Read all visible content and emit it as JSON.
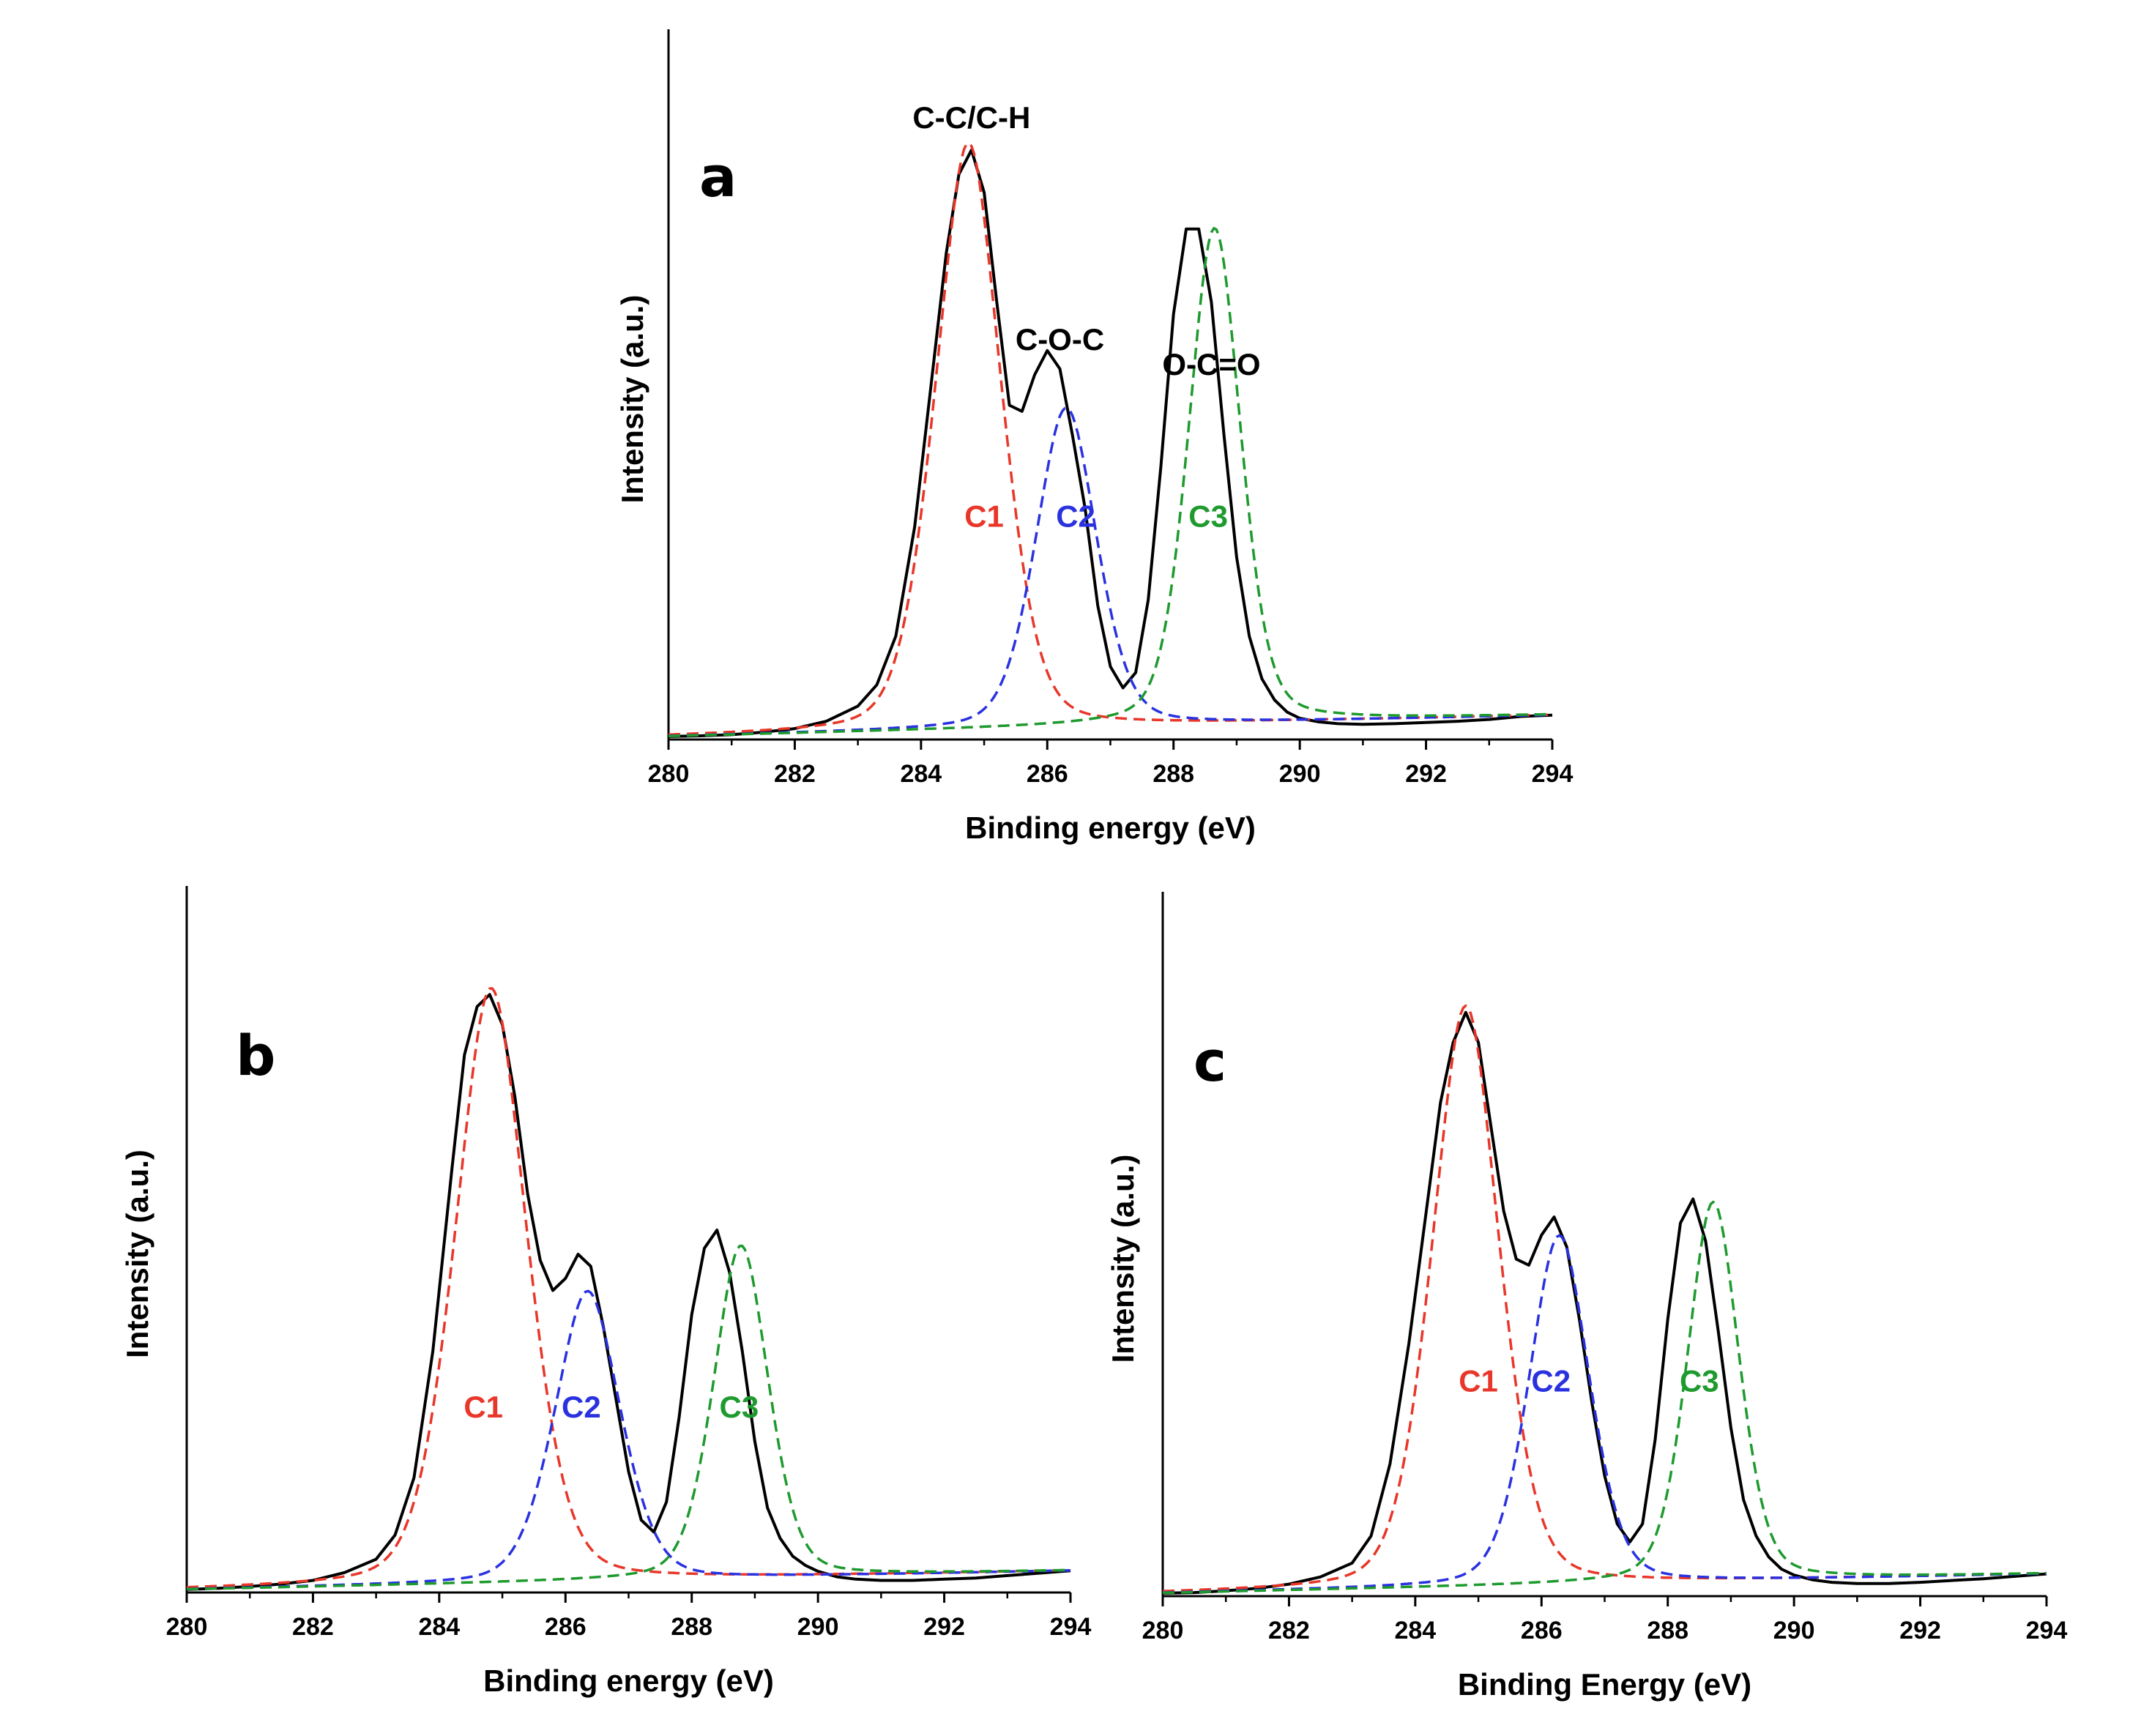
{
  "chart_data": [
    {
      "type": "line",
      "panel_label": "a",
      "xlabel": "Binding energy (eV)",
      "ylabel": "Intensity (a.u.)",
      "xlim": [
        280,
        294
      ],
      "xticks": [
        280,
        282,
        284,
        286,
        288,
        290,
        292,
        294
      ],
      "ylim": [
        0,
        100
      ],
      "peak_annotations": [
        {
          "text": "C-C/C-H",
          "x": 284.8
        },
        {
          "text": "C-O-C",
          "x": 286.2
        },
        {
          "text": "O-C=O",
          "x": 288.6
        }
      ],
      "series": [
        {
          "name": "Measured",
          "color": "#000000",
          "style": "solid",
          "x": [
            280,
            280.5,
            281,
            281.5,
            282,
            282.5,
            283,
            283.3,
            283.6,
            283.9,
            284.2,
            284.4,
            284.6,
            284.8,
            285,
            285.2,
            285.4,
            285.6,
            285.8,
            286,
            286.2,
            286.4,
            286.6,
            286.8,
            287,
            287.2,
            287.4,
            287.6,
            287.8,
            288,
            288.2,
            288.4,
            288.6,
            288.8,
            289,
            289.2,
            289.4,
            289.6,
            289.8,
            290,
            290.3,
            290.6,
            291,
            291.5,
            292,
            292.5,
            293,
            293.5,
            294
          ],
          "y": [
            0.5,
            0.6,
            0.8,
            1.2,
            1.8,
            3,
            5.5,
            9,
            17,
            35,
            62,
            80,
            93,
            97,
            90,
            72,
            55,
            54,
            60,
            64,
            61,
            50,
            38,
            22,
            12,
            8.5,
            11,
            23,
            45,
            70,
            84,
            84,
            72,
            50,
            30,
            17,
            10,
            6.5,
            4.5,
            3.5,
            2.9,
            2.6,
            2.5,
            2.6,
            2.8,
            3,
            3.3,
            3.8,
            4
          ]
        },
        {
          "name": "C1",
          "color": "#e8372a",
          "style": "dashed",
          "center": 284.75,
          "amplitude": 96.5,
          "sigma": 0.55,
          "gamma": 0.5,
          "eta": 0.3
        },
        {
          "name": "C2",
          "color": "#2a32e0",
          "style": "dashed",
          "center": 286.3,
          "amplitude": 52.5,
          "sigma": 0.5,
          "gamma": 0.5,
          "eta": 0.3
        },
        {
          "name": "C3",
          "color": "#1e9a2e",
          "style": "dashed",
          "center": 288.65,
          "amplitude": 81.5,
          "sigma": 0.42,
          "gamma": 0.45,
          "eta": 0.3
        },
        {
          "name": "Background",
          "style": "baseline",
          "from": [
            280,
            0.5
          ],
          "to": [
            294,
            4
          ]
        }
      ],
      "component_labels": [
        {
          "text": "C1",
          "x": 285.0,
          "y": 35,
          "color": "#e8372a"
        },
        {
          "text": "C2",
          "x": 286.45,
          "y": 35,
          "color": "#2a32e0"
        },
        {
          "text": "C3",
          "x": 288.55,
          "y": 35,
          "color": "#1e9a2e"
        }
      ]
    },
    {
      "type": "line",
      "panel_label": "b",
      "xlabel": "Binding energy (eV)",
      "ylabel": "Intensity (a.u.)",
      "xlim": [
        280,
        294
      ],
      "xticks": [
        280,
        282,
        284,
        286,
        288,
        290,
        292,
        294
      ],
      "ylim": [
        0,
        100
      ],
      "peak_annotations": [],
      "series": [
        {
          "name": "Measured",
          "color": "#000000",
          "style": "solid",
          "x": [
            280,
            280.5,
            281,
            281.5,
            282,
            282.5,
            283,
            283.3,
            283.6,
            283.9,
            284.2,
            284.4,
            284.6,
            284.8,
            285,
            285.2,
            285.4,
            285.6,
            285.8,
            286,
            286.2,
            286.4,
            286.6,
            286.8,
            287,
            287.2,
            287.4,
            287.6,
            287.8,
            288,
            288.2,
            288.4,
            288.6,
            288.8,
            289,
            289.2,
            289.4,
            289.6,
            289.8,
            290,
            290.3,
            290.6,
            291,
            291.5,
            292,
            292.5,
            293,
            293.5,
            294
          ],
          "y": [
            0.5,
            0.7,
            1,
            1.4,
            2,
            3.3,
            5.5,
            9.5,
            19,
            40,
            70,
            89,
            97,
            99,
            94,
            82,
            66,
            55,
            50,
            52,
            56,
            54,
            44,
            32,
            20,
            12,
            10,
            15,
            29,
            46,
            57,
            60,
            53,
            40,
            25,
            14,
            9,
            6,
            4.5,
            3.5,
            2.6,
            2.2,
            2,
            2,
            2.2,
            2.4,
            2.8,
            3.2,
            3.6
          ]
        },
        {
          "name": "C1",
          "color": "#e8372a",
          "style": "dashed",
          "center": 284.82,
          "amplitude": 98.5,
          "sigma": 0.6,
          "gamma": 0.55,
          "eta": 0.3
        },
        {
          "name": "C2",
          "color": "#2a32e0",
          "style": "dashed",
          "center": 286.35,
          "amplitude": 48,
          "sigma": 0.55,
          "gamma": 0.5,
          "eta": 0.3
        },
        {
          "name": "C3",
          "color": "#1e9a2e",
          "style": "dashed",
          "center": 288.78,
          "amplitude": 55,
          "sigma": 0.45,
          "gamma": 0.45,
          "eta": 0.3
        },
        {
          "name": "Background",
          "style": "baseline",
          "from": [
            280,
            0.5
          ],
          "to": [
            294,
            3.6
          ]
        }
      ],
      "component_labels": [
        {
          "text": "C1",
          "x": 284.7,
          "y": 29,
          "color": "#e8372a"
        },
        {
          "text": "C2",
          "x": 286.25,
          "y": 29,
          "color": "#2a32e0"
        },
        {
          "text": "C3",
          "x": 288.75,
          "y": 29,
          "color": "#1e9a2e"
        }
      ]
    },
    {
      "type": "line",
      "panel_label": "c",
      "xlabel": "Binding Energy (eV)",
      "ylabel": "Intensity (a.u.)",
      "xlim": [
        280,
        294
      ],
      "xticks": [
        280,
        282,
        284,
        286,
        288,
        290,
        292,
        294
      ],
      "ylim": [
        0,
        100
      ],
      "peak_annotations": [],
      "series": [
        {
          "name": "Measured",
          "color": "#000000",
          "style": "solid",
          "x": [
            280,
            280.5,
            281,
            281.5,
            282,
            282.5,
            283,
            283.3,
            283.6,
            283.9,
            284.2,
            284.4,
            284.6,
            284.8,
            285,
            285.2,
            285.4,
            285.6,
            285.8,
            286,
            286.2,
            286.4,
            286.6,
            286.8,
            287,
            287.2,
            287.4,
            287.6,
            287.8,
            288,
            288.2,
            288.4,
            288.6,
            288.8,
            289,
            289.2,
            289.4,
            289.6,
            289.8,
            290,
            290.3,
            290.6,
            291,
            291.5,
            292,
            292.5,
            293,
            293.5,
            294
          ],
          "y": [
            0.5,
            0.6,
            0.9,
            1.3,
            2,
            3.2,
            5.5,
            10,
            22,
            42,
            66,
            82,
            92,
            97,
            92,
            78,
            64,
            56,
            55,
            60,
            63,
            58,
            46,
            32,
            20,
            12,
            9,
            12,
            26,
            46,
            62,
            66,
            59,
            44,
            28,
            16,
            10,
            6.5,
            4.5,
            3.5,
            2.7,
            2.3,
            2.1,
            2.1,
            2.3,
            2.6,
            2.9,
            3.3,
            3.7
          ]
        },
        {
          "name": "C1",
          "color": "#e8372a",
          "style": "dashed",
          "center": 284.8,
          "amplitude": 96.5,
          "sigma": 0.56,
          "gamma": 0.52,
          "eta": 0.3
        },
        {
          "name": "C2",
          "color": "#2a32e0",
          "style": "dashed",
          "center": 286.28,
          "amplitude": 58,
          "sigma": 0.5,
          "gamma": 0.48,
          "eta": 0.3
        },
        {
          "name": "C3",
          "color": "#1e9a2e",
          "style": "dashed",
          "center": 288.72,
          "amplitude": 63,
          "sigma": 0.42,
          "gamma": 0.44,
          "eta": 0.3
        },
        {
          "name": "Background",
          "style": "baseline",
          "from": [
            280,
            0.5
          ],
          "to": [
            294,
            3.7
          ]
        }
      ],
      "component_labels": [
        {
          "text": "C1",
          "x": 285.0,
          "y": 34,
          "color": "#e8372a"
        },
        {
          "text": "C2",
          "x": 286.15,
          "y": 34,
          "color": "#2a32e0"
        },
        {
          "text": "C3",
          "x": 288.5,
          "y": 34,
          "color": "#1e9a2e"
        }
      ]
    }
  ]
}
